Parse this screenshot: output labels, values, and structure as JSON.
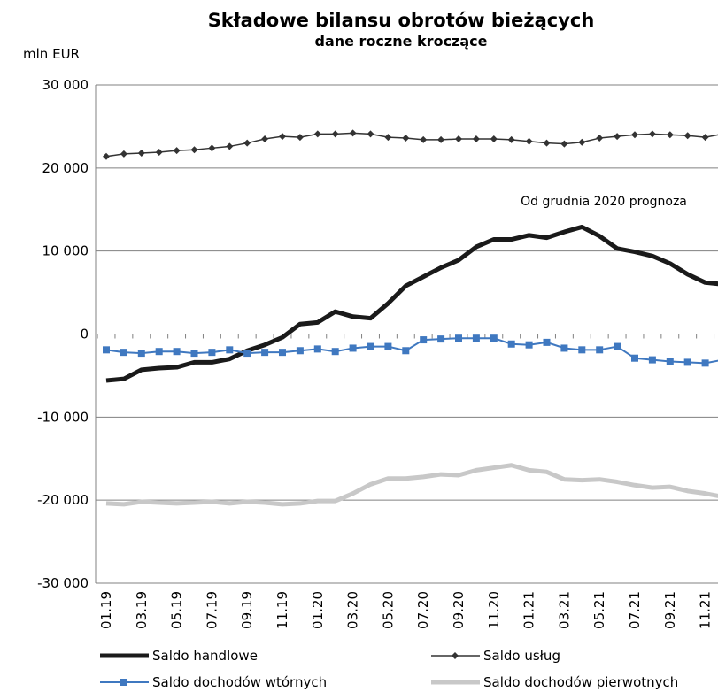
{
  "chart_data": {
    "type": "line",
    "title": "Składowe bilansu obrotów bieżących",
    "subtitle": "dane roczne kroczące",
    "y_label": "mln EUR",
    "annotation": "Od grudnia 2020 prognoza",
    "categories": [
      "01.19",
      null,
      "03.19",
      null,
      "05.19",
      null,
      "07.19",
      null,
      "09.19",
      null,
      "11.19",
      null,
      "01.20",
      null,
      "03.20",
      null,
      "05.20",
      null,
      "07.20",
      null,
      "09.20",
      null,
      "11.20",
      null,
      "01.21",
      null,
      "03.21",
      null,
      "05.21",
      null,
      "07.21",
      null,
      "09.21",
      null,
      "11.21",
      null
    ],
    "ylim": [
      -30000,
      30000
    ],
    "yticks": [
      {
        "value": 30000,
        "label": "30 000"
      },
      {
        "value": 20000,
        "label": "20 000"
      },
      {
        "value": 10000,
        "label": "10 000"
      },
      0,
      {
        "value": -10000,
        "label": "-10 000"
      },
      {
        "value": -20000,
        "label": "-20 000"
      },
      {
        "value": -30000,
        "label": "-30 000"
      }
    ],
    "grid": true,
    "series": [
      {
        "name": "Saldo handlowe",
        "color": "#1a1a1a",
        "values": [
          -5600,
          -5400,
          -4300,
          -4100,
          -4000,
          -3400,
          -3400,
          -3000,
          -2000,
          -1300,
          -400,
          1200,
          1400,
          2700,
          2100,
          1900,
          3700,
          5800,
          6900,
          8000,
          8900,
          10500,
          11400,
          11400,
          11900,
          11600,
          12300,
          12900,
          11800,
          10300,
          9900,
          9400,
          8500,
          7200,
          6200,
          6000
        ]
      },
      {
        "name": "Saldo usług",
        "color": "#333333",
        "marker": "diamond",
        "values": [
          21400,
          21700,
          21800,
          21900,
          22100,
          22200,
          22400,
          22600,
          23000,
          23500,
          23800,
          23700,
          24100,
          24100,
          24200,
          24100,
          23700,
          23600,
          23400,
          23400,
          23500,
          23500,
          23500,
          23400,
          23200,
          23000,
          22900,
          23100,
          23600,
          23800,
          24000,
          24100,
          24000,
          23900,
          23700,
          24100
        ]
      },
      {
        "name": "Saldo dochodów wtórnych",
        "color": "#3f78c0",
        "marker": "square",
        "values": [
          -1900,
          -2200,
          -2300,
          -2100,
          -2100,
          -2300,
          -2200,
          -1900,
          -2300,
          -2200,
          -2200,
          -2000,
          -1800,
          -2100,
          -1700,
          -1500,
          -1500,
          -2000,
          -700,
          -600,
          -500,
          -500,
          -500,
          -1200,
          -1300,
          -1000,
          -1700,
          -1900,
          -1900,
          -1500,
          -2900,
          -3100,
          -3300,
          -3400,
          -3500,
          -3100
        ]
      },
      {
        "name": "Saldo dochodów pierwotnych",
        "color": "#c8c8c8",
        "values": [
          -20400,
          -20500,
          -20200,
          -20300,
          -20400,
          -20300,
          -20200,
          -20400,
          -20200,
          -20300,
          -20500,
          -20400,
          -20100,
          -20100,
          -19200,
          -18100,
          -17400,
          -17400,
          -17200,
          -16900,
          -17000,
          -16400,
          -16100,
          -15800,
          -16400,
          -16600,
          -17500,
          -17600,
          -17500,
          -17800,
          -18200,
          -18500,
          -18400,
          -18900,
          -19200,
          -19600
        ]
      }
    ]
  }
}
